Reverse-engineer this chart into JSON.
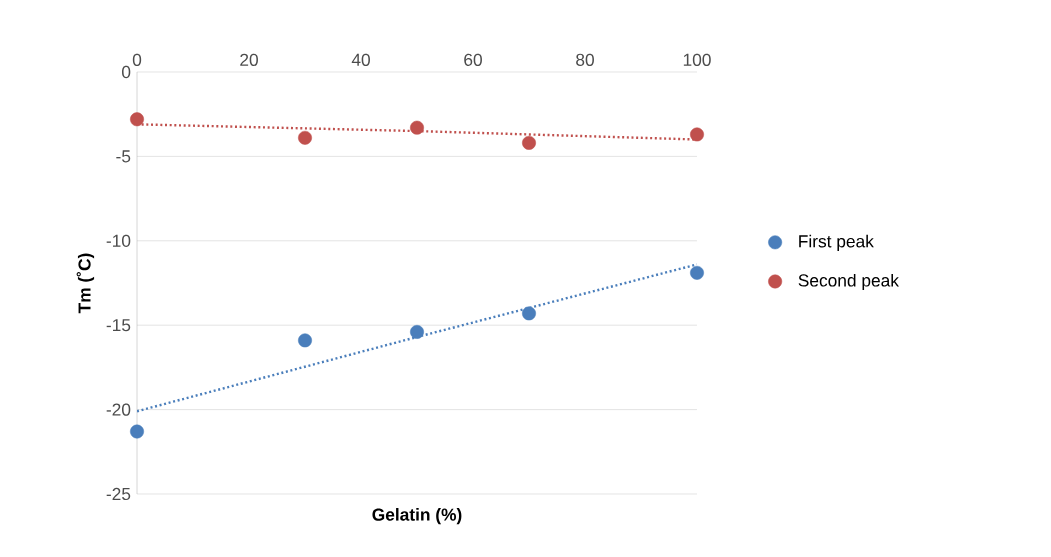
{
  "chart_data": {
    "type": "scatter",
    "xlabel": "Gelatin (%)",
    "ylabel": "Tm (˚C)",
    "xlim": [
      0,
      100
    ],
    "xticks": [
      0,
      20,
      40,
      60,
      80,
      100
    ],
    "ylim": [
      -25,
      0
    ],
    "yticks": [
      -25,
      -20,
      -15,
      -10,
      -5,
      0
    ],
    "grid": "y",
    "legend": "right",
    "x": [
      0,
      30,
      50,
      70,
      100
    ],
    "series": [
      {
        "name": "First peak",
        "marker": "circle",
        "color": "#4a7ebb",
        "values": [
          -21.3,
          -15.9,
          -15.4,
          -14.3,
          -11.9
        ]
      },
      {
        "name": "Second peak",
        "marker": "circle",
        "color": "#c0504d",
        "values": [
          -2.8,
          -3.9,
          -3.3,
          -4.2,
          -3.7
        ]
      },
      {
        "type": "line",
        "marker": "none",
        "line_style": "dotted",
        "color": "#4a7ebb",
        "x": [
          0,
          50,
          100
        ],
        "values": [
          -20.1,
          -15.7,
          -11.4
        ]
      },
      {
        "type": "line",
        "marker": "none",
        "line_style": "dotted",
        "color": "#c0504d",
        "x": [
          0,
          50,
          100
        ],
        "values": [
          -3.1,
          -3.5,
          -4.0
        ]
      }
    ]
  }
}
